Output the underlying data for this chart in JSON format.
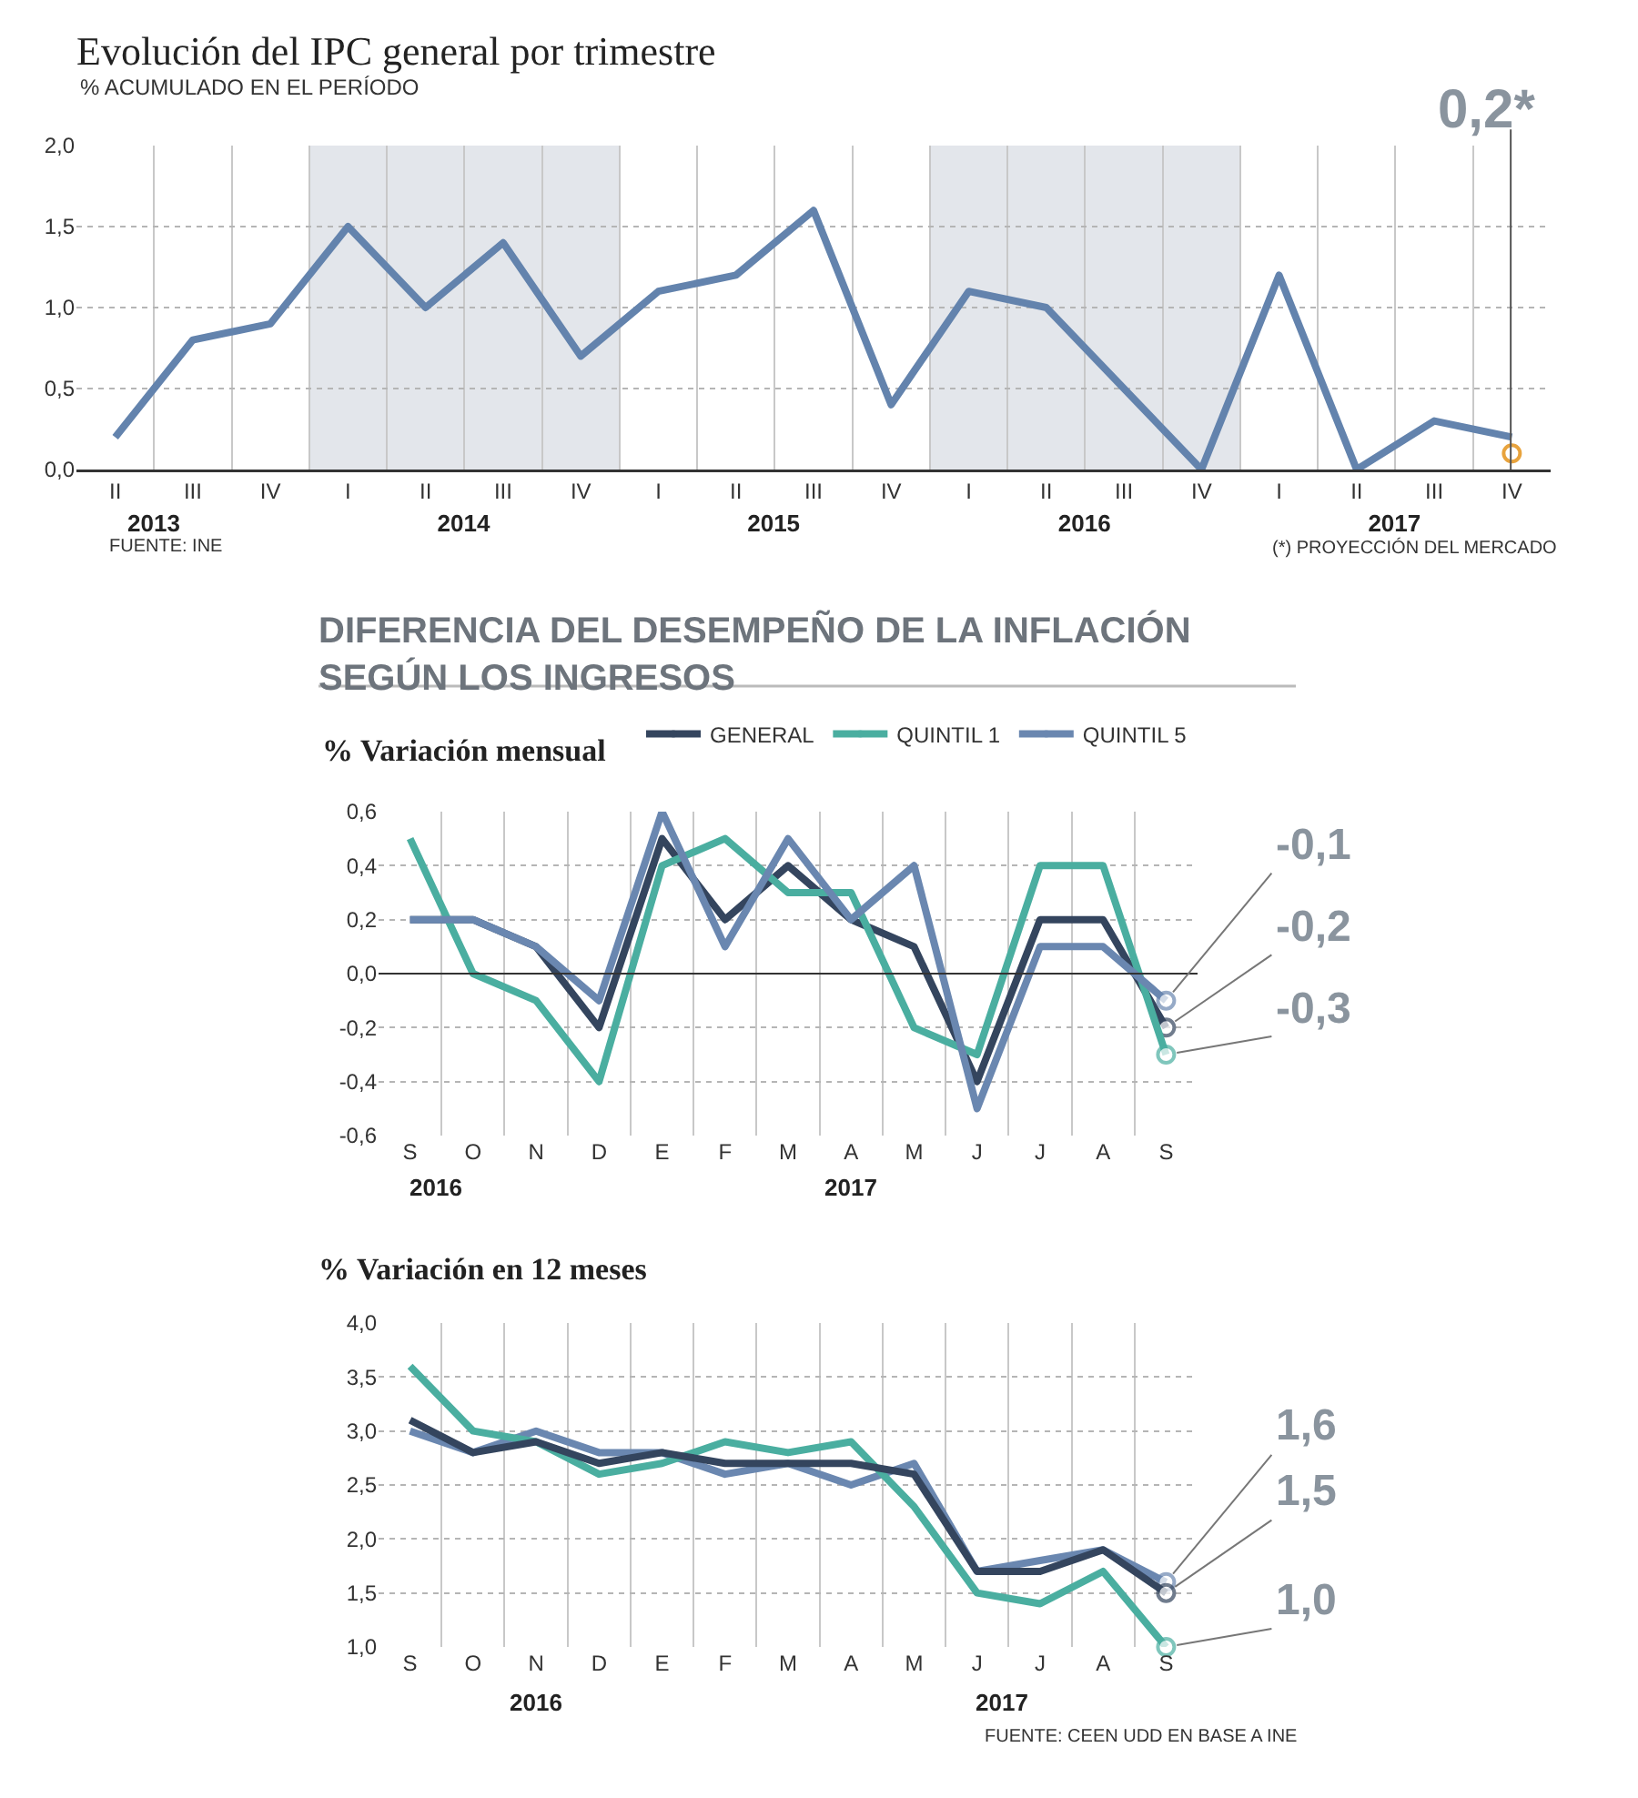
{
  "chart_data": [
    {
      "type": "line",
      "title": "Evolución del IPC general por trimestre",
      "subtitle": "% ACUMULADO EN EL PERÍODO",
      "categories": [
        "II",
        "III",
        "IV",
        "I",
        "II",
        "III",
        "IV",
        "I",
        "II",
        "III",
        "IV",
        "I",
        "II",
        "III",
        "IV",
        "I",
        "II",
        "III",
        "IV"
      ],
      "series": [
        {
          "color": "#6383ad",
          "values": [
            0.2,
            0.8,
            0.9,
            1.5,
            1.0,
            1.4,
            0.7,
            1.1,
            1.2,
            1.6,
            0.4,
            1.1,
            1.0,
            0.5,
            0.0,
            1.2,
            0.0,
            0.3,
            0.2
          ]
        },
        {
          "type": "scatter",
          "color": "#e8a33d",
          "values": [
            null,
            null,
            null,
            null,
            null,
            null,
            null,
            null,
            null,
            null,
            null,
            null,
            null,
            null,
            null,
            null,
            null,
            null,
            0.1
          ]
        }
      ],
      "x2lim": [
        "2013-04-01",
        "2018-01-01"
      ],
      "x2ticks": [
        {
          "value": "2013-07-01",
          "label": "2013"
        },
        {
          "value": "2014-07-01",
          "label": "2014"
        },
        {
          "value": "2015-07-01",
          "label": "2015"
        },
        {
          "value": "2016-07-01",
          "label": "2016"
        },
        {
          "value": "2017-07-01",
          "label": "2017"
        }
      ],
      "ylim": [
        0,
        2
      ],
      "yticks": [
        {
          "value": 0,
          "label": "0,0"
        },
        {
          "value": 0.5,
          "label": "0,5"
        },
        {
          "value": 1,
          "label": "1,0"
        },
        {
          "value": 1.5,
          "label": "1,5"
        },
        {
          "value": 2,
          "label": "2,0"
        }
      ],
      "bands": [
        {
          "axis": "x2",
          "from": "2014-01-01",
          "to": "2015-01-01",
          "color": "#e3e6eb"
        },
        {
          "axis": "x2",
          "from": "2016-01-01",
          "to": "2017-01-01",
          "color": "#e3e6eb"
        }
      ],
      "ref_lines": [
        {
          "axis": "x2",
          "value": "2017-11-15",
          "color": "#555555"
        }
      ],
      "grid": true,
      "annotations": [
        "FUENTE: INE",
        "(*) PROYECCIÓN DEL MERCADO",
        "0,2*"
      ]
    },
    {
      "type": "line",
      "title": "DIFERENCIA DEL DESEMPEÑO DE LA INFLACIÓN SEGÚN LOS INGRESOS",
      "subtitle": "% Variación mensual",
      "categories": [
        "S",
        "O",
        "N",
        "D",
        "E",
        "F",
        "M",
        "A",
        "M",
        "J",
        "J",
        "A",
        "S"
      ],
      "series": [
        {
          "name": "GENERAL",
          "color": "#34455e",
          "values": [
            0.2,
            0.2,
            0.1,
            -0.2,
            0.5,
            0.2,
            0.4,
            0.2,
            0.1,
            -0.4,
            0.2,
            0.2,
            -0.2
          ],
          "value_labels": [
            null,
            null,
            null,
            null,
            null,
            null,
            null,
            null,
            null,
            null,
            null,
            null,
            "-0,2"
          ]
        },
        {
          "name": "QUINTIL 1",
          "color": "#4aaea0",
          "values": [
            0.5,
            0.0,
            -0.1,
            -0.4,
            0.4,
            0.5,
            0.3,
            0.3,
            -0.2,
            -0.3,
            0.4,
            0.4,
            -0.3
          ],
          "value_labels": [
            null,
            null,
            null,
            null,
            null,
            null,
            null,
            null,
            null,
            null,
            null,
            null,
            "-0,3"
          ]
        },
        {
          "name": "QUINTIL 5",
          "color": "#6a87b0",
          "values": [
            0.2,
            0.2,
            0.1,
            -0.1,
            0.6,
            0.1,
            0.5,
            0.2,
            0.4,
            -0.5,
            0.1,
            0.1,
            -0.1
          ],
          "value_labels": [
            null,
            null,
            null,
            null,
            null,
            null,
            null,
            null,
            null,
            null,
            null,
            null,
            "-0,1"
          ]
        }
      ],
      "ylim": [
        -0.6,
        0.6
      ],
      "yticks": [
        {
          "value": -0.6,
          "label": "-0,6"
        },
        {
          "value": -0.4,
          "label": "-0,4"
        },
        {
          "value": -0.2,
          "label": "-0,2"
        },
        {
          "value": 0,
          "label": "0,0"
        },
        {
          "value": 0.2,
          "label": "0,2"
        },
        {
          "value": 0.4,
          "label": "0,4"
        },
        {
          "value": 0.6,
          "label": "0,6"
        }
      ],
      "ref_lines": [
        {
          "axis": "y",
          "value": 0,
          "color": "#333333"
        }
      ],
      "grid": true,
      "legend": "top right",
      "annotations": [
        "2016",
        "2017"
      ]
    },
    {
      "type": "line",
      "title": "% Variación en 12 meses",
      "categories": [
        "S",
        "O",
        "N",
        "D",
        "E",
        "F",
        "M",
        "A",
        "M",
        "J",
        "J",
        "A",
        "S"
      ],
      "series": [
        {
          "color": "#6a87b0",
          "values": [
            3.0,
            2.8,
            3.0,
            2.8,
            2.8,
            2.6,
            2.7,
            2.5,
            2.7,
            1.7,
            1.8,
            1.9,
            1.6
          ],
          "value_labels": [
            null,
            null,
            null,
            null,
            null,
            null,
            null,
            null,
            null,
            null,
            null,
            null,
            "1,6"
          ]
        },
        {
          "color": "#4aaea0",
          "values": [
            3.6,
            3.0,
            2.9,
            2.6,
            2.7,
            2.9,
            2.8,
            2.9,
            2.3,
            1.5,
            1.4,
            1.7,
            1.0
          ],
          "value_labels": [
            null,
            null,
            null,
            null,
            null,
            null,
            null,
            null,
            null,
            null,
            null,
            null,
            "1,0"
          ]
        },
        {
          "color": "#34455e",
          "values": [
            3.1,
            2.8,
            2.9,
            2.7,
            2.8,
            2.7,
            2.7,
            2.7,
            2.6,
            1.7,
            1.7,
            1.9,
            1.5
          ],
          "value_labels": [
            null,
            null,
            null,
            null,
            null,
            null,
            null,
            null,
            null,
            null,
            null,
            null,
            "1,5"
          ]
        }
      ],
      "ylim": [
        1,
        4
      ],
      "yticks": [
        {
          "value": 1,
          "label": "1,0"
        },
        {
          "value": 1.5,
          "label": "1,5"
        },
        {
          "value": 2,
          "label": "2,0"
        },
        {
          "value": 2.5,
          "label": "2,5"
        },
        {
          "value": 3,
          "label": "3,0"
        },
        {
          "value": 3.5,
          "label": "3,5"
        },
        {
          "value": 4,
          "label": "4,0"
        }
      ],
      "grid": true,
      "annotations": [
        "2016",
        "2017",
        "FUENTE: CEEN UDD EN BASE A INE"
      ]
    }
  ]
}
